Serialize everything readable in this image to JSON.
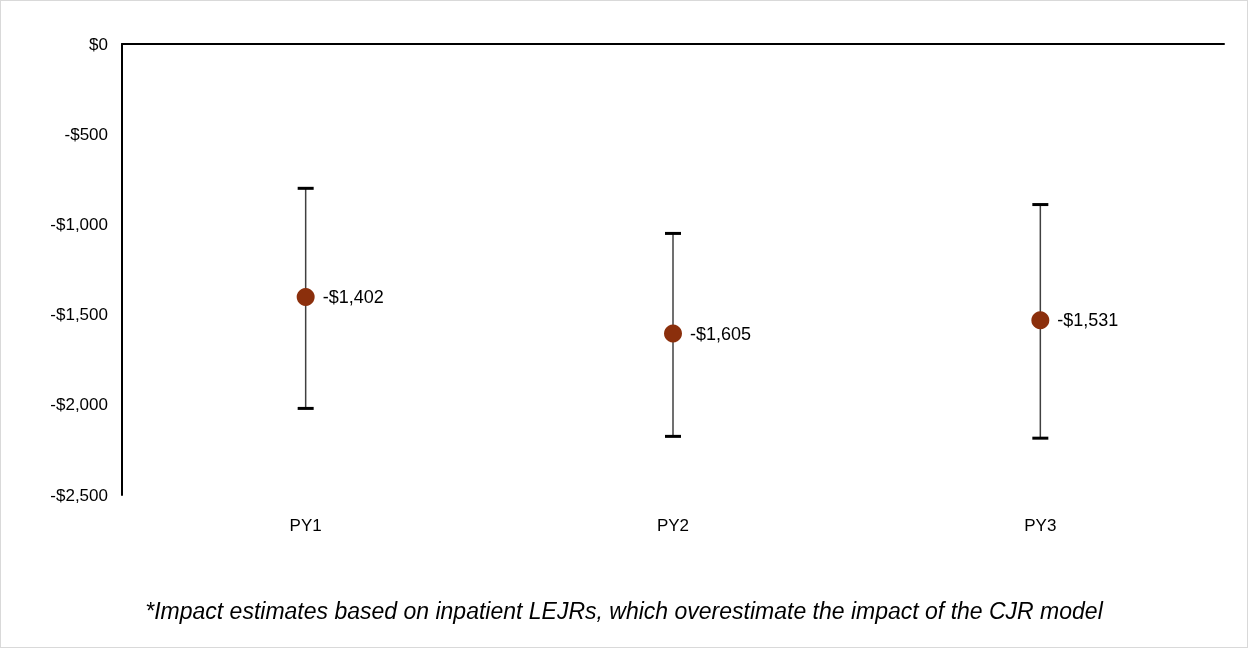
{
  "chart_data": {
    "type": "scatter",
    "categories": [
      "PY1",
      "PY2",
      "PY3"
    ],
    "series": [
      {
        "color": "#8b2f0c",
        "values": [
          -1402,
          -1605,
          -1531
        ],
        "value_labels": [
          "-$1,402",
          "-$1,605",
          "-$1,531"
        ],
        "errors": [
          [
            -2020,
            -800
          ],
          [
            -2175,
            -1050
          ],
          [
            -2185,
            -890
          ]
        ]
      }
    ],
    "ylim": [
      -2500,
      0
    ],
    "yticks": [
      {
        "value": -2500,
        "label": "-$2,500"
      },
      {
        "value": -2000,
        "label": "-$2,000"
      },
      {
        "value": -1500,
        "label": "-$1,500"
      },
      {
        "value": -1000,
        "label": "-$1,000"
      },
      {
        "value": -500,
        "label": "-$500"
      },
      {
        "value": 0,
        "label": "$0"
      }
    ],
    "marker": "circle",
    "grid": false,
    "annotations": [
      "*Impact estimates based on inpatient LEJRs, which overestimate the impact of the CJR model"
    ]
  }
}
